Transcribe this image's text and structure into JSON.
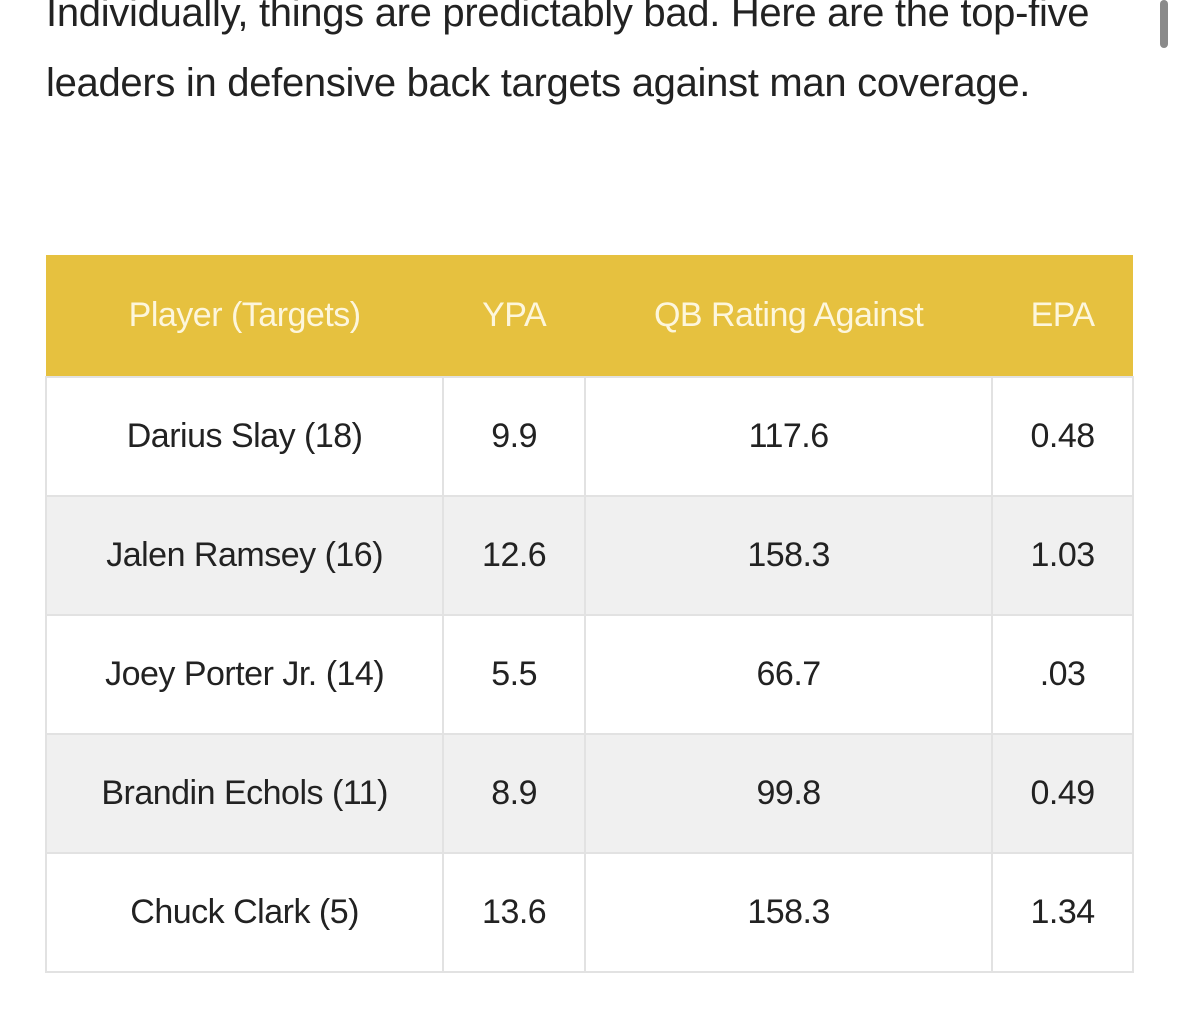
{
  "paragraph": "Individually, things are predictably bad. Here are the top-five leaders in defensive back targets against man coverage.",
  "table": {
    "headers": [
      "Player (Targets)",
      "YPA",
      "QB Rating Against",
      "EPA"
    ],
    "rows": [
      [
        "Darius Slay (18)",
        "9.9",
        "117.6",
        "0.48"
      ],
      [
        "Jalen Ramsey (16)",
        "12.6",
        "158.3",
        "1.03"
      ],
      [
        "Joey Porter Jr. (14)",
        "5.5",
        "66.7",
        ".03"
      ],
      [
        "Brandin Echols (11)",
        "8.9",
        "99.8",
        "0.49"
      ],
      [
        "Chuck Clark (5)",
        "13.6",
        "158.3",
        "1.34"
      ]
    ]
  },
  "colors": {
    "header_bg": "#e6c13f",
    "header_text": "#fdf6dc",
    "alt_row": "#f0f0f0"
  }
}
